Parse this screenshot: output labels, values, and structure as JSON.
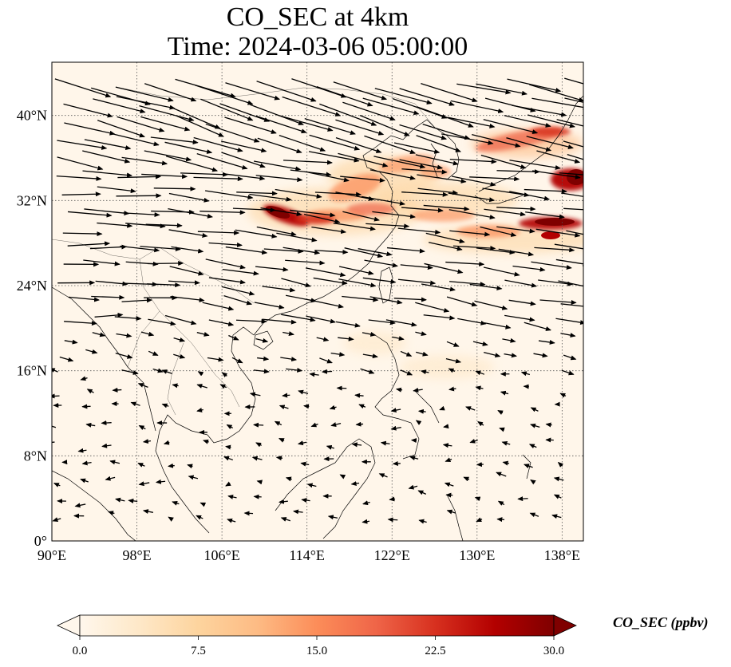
{
  "title": {
    "line1": "CO_SEC at 4km",
    "line2": "Time: 2024-03-06 05:00:00"
  },
  "map": {
    "extent": {
      "lon": [
        90,
        140
      ],
      "lat": [
        0,
        45
      ]
    },
    "lon_ticks": [
      {
        "value": 90,
        "label": "90°E"
      },
      {
        "value": 98,
        "label": "98°E"
      },
      {
        "value": 106,
        "label": "106°E"
      },
      {
        "value": 114,
        "label": "114°E"
      },
      {
        "value": 122,
        "label": "122°E"
      },
      {
        "value": 130,
        "label": "130°E"
      },
      {
        "value": 138,
        "label": "138°E"
      }
    ],
    "lat_ticks": [
      {
        "value": 0,
        "label": "0°"
      },
      {
        "value": 8,
        "label": "8°N"
      },
      {
        "value": 16,
        "label": "16°N"
      },
      {
        "value": 24,
        "label": "24°N"
      },
      {
        "value": 32,
        "label": "32°N"
      },
      {
        "value": 40,
        "label": "40°N"
      }
    ],
    "gridlines": true,
    "background_color": "#fff6ea",
    "plumes": [
      {
        "lon": 111.5,
        "lat": 30.5,
        "value": 30
      },
      {
        "lon": 113.5,
        "lat": 30.0,
        "value": 26
      },
      {
        "lon": 118.5,
        "lat": 33.5,
        "value": 14
      },
      {
        "lon": 122.0,
        "lat": 31.0,
        "value": 12
      },
      {
        "lon": 125.0,
        "lat": 35.0,
        "value": 11
      },
      {
        "lon": 127.0,
        "lat": 31.0,
        "value": 10
      },
      {
        "lon": 134.0,
        "lat": 37.5,
        "value": 14
      },
      {
        "lon": 137.0,
        "lat": 38.0,
        "value": 18
      },
      {
        "lon": 139.5,
        "lat": 34.5,
        "value": 30
      },
      {
        "lon": 137.0,
        "lat": 30.0,
        "value": 30
      },
      {
        "lon": 134.5,
        "lat": 29.5,
        "value": 16
      },
      {
        "lon": 131.0,
        "lat": 29.0,
        "value": 10
      },
      {
        "lon": 108.5,
        "lat": 30.5,
        "value": 8
      },
      {
        "lon": 116.0,
        "lat": 30.0,
        "value": 14
      },
      {
        "lon": 120.0,
        "lat": 29.5,
        "value": 10
      }
    ],
    "wind_field": "westerly north of ~18°N, weak easterly south of ~16°N"
  },
  "colorbar": {
    "label": "CO_SEC (ppbv)",
    "min": 0,
    "max": 30,
    "extend": "both",
    "colormap": "OrRd",
    "ticks": [
      "0.0",
      "7.5",
      "15.0",
      "22.5",
      "30.0"
    ],
    "colors": [
      "#fff7ec",
      "#fee8c8",
      "#fdd49e",
      "#fdbb84",
      "#fc8d59",
      "#ef6548",
      "#d7301f",
      "#b30000",
      "#7f0000"
    ]
  }
}
